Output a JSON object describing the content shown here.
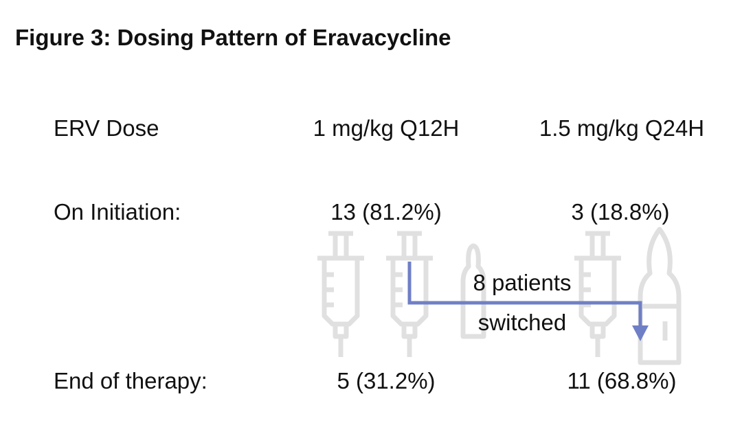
{
  "title": "Figure 3: Dosing Pattern of Eravacycline",
  "header": {
    "label": "ERV Dose",
    "col1": "1 mg/kg Q12H",
    "col2": "1.5 mg/kg Q24H"
  },
  "rows": [
    {
      "label": "On Initiation:",
      "col1": "13 (81.2%)",
      "col2": "3 (18.8%)"
    },
    {
      "label": "End of therapy:",
      "col1": "5 (31.2%)",
      "col2": "11 (68.8%)"
    }
  ],
  "switch": {
    "line1": "8 patients",
    "line2": "switched",
    "count": 8,
    "from": "1 mg/kg Q12H",
    "to": "1.5 mg/kg Q24H"
  },
  "icons": [
    "syringe-icon",
    "syringe-icon",
    "ampoule-icon",
    "syringe-icon",
    "ampoule-icon"
  ],
  "colors": {
    "arrow": "#6f7fc6",
    "icon": "#e0e0e0",
    "text": "#111111"
  }
}
